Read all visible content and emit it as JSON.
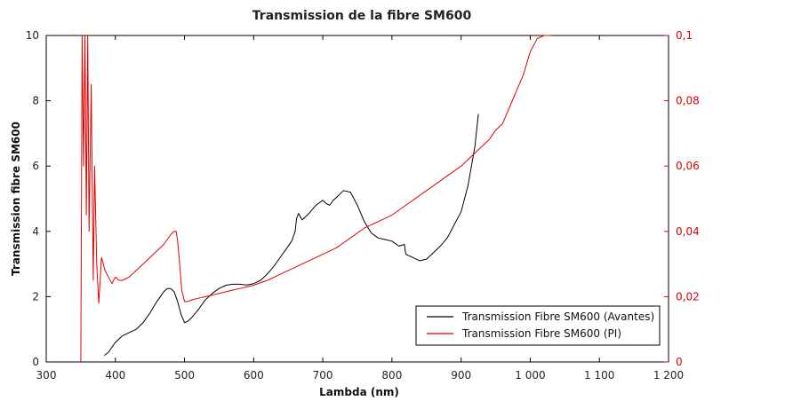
{
  "chart_data": {
    "type": "line",
    "title": "Transmission de la fibre SM600",
    "xlabel": "Lambda (nm)",
    "ylabel": "Transmission fibre SM600",
    "y2label": "",
    "xlim": [
      300,
      1200
    ],
    "ylim": [
      0,
      10
    ],
    "y2lim": [
      0,
      0.1
    ],
    "xticks": [
      300,
      400,
      500,
      600,
      700,
      800,
      900,
      1000,
      1100,
      1200
    ],
    "xtick_labels": [
      "300",
      "400",
      "500",
      "600",
      "700",
      "800",
      "900",
      "1 000",
      "1 100",
      "1 200"
    ],
    "yticks": [
      0,
      2,
      4,
      6,
      8,
      10
    ],
    "ytick_labels": [
      "0",
      "2",
      "4",
      "6",
      "8",
      "10"
    ],
    "y2ticks": [
      0,
      0.02,
      0.04,
      0.06,
      0.08,
      0.1
    ],
    "y2tick_labels": [
      "0",
      "0,02",
      "0,04",
      "0,06",
      "0,08",
      "0,1"
    ],
    "grid": false,
    "legend_position": "bottom-right",
    "series": [
      {
        "name": "Transmission Fibre SM600 (Avantes)",
        "color": "#000000",
        "axis": "left",
        "x": [
          384,
          390,
          400,
          410,
          420,
          430,
          440,
          450,
          460,
          470,
          475,
          480,
          485,
          490,
          495,
          500,
          505,
          510,
          520,
          530,
          540,
          550,
          560,
          570,
          580,
          590,
          600,
          610,
          620,
          630,
          640,
          650,
          655,
          660,
          662,
          665,
          670,
          680,
          690,
          700,
          705,
          710,
          715,
          720,
          730,
          740,
          750,
          760,
          770,
          780,
          790,
          800,
          810,
          818,
          820,
          830,
          840,
          850,
          860,
          870,
          880,
          890,
          900,
          910,
          920,
          925
        ],
        "y": [
          0.2,
          0.3,
          0.6,
          0.8,
          0.9,
          1.0,
          1.2,
          1.5,
          1.85,
          2.15,
          2.25,
          2.25,
          2.15,
          1.85,
          1.45,
          1.2,
          1.25,
          1.35,
          1.6,
          1.9,
          2.1,
          2.25,
          2.35,
          2.38,
          2.38,
          2.36,
          2.4,
          2.5,
          2.7,
          2.95,
          3.25,
          3.55,
          3.7,
          4.0,
          4.4,
          4.55,
          4.35,
          4.55,
          4.8,
          4.95,
          4.85,
          4.8,
          4.95,
          5.05,
          5.25,
          5.2,
          4.8,
          4.3,
          3.95,
          3.8,
          3.75,
          3.7,
          3.55,
          3.6,
          3.3,
          3.2,
          3.1,
          3.15,
          3.35,
          3.55,
          3.8,
          4.2,
          4.6,
          5.4,
          6.6,
          7.6
        ]
      },
      {
        "name": "Transmission Fibre SM600 (PI)",
        "color": "#e00000",
        "axis": "right",
        "x": [
          350,
          352,
          354,
          356,
          358,
          360,
          362,
          365,
          368,
          370,
          373,
          376,
          380,
          385,
          390,
          395,
          400,
          405,
          410,
          420,
          430,
          440,
          450,
          460,
          470,
          480,
          485,
          488,
          490,
          493,
          496,
          500,
          505,
          510,
          520,
          530,
          540,
          550,
          560,
          570,
          580,
          590,
          600,
          620,
          640,
          660,
          680,
          700,
          720,
          740,
          760,
          780,
          800,
          820,
          840,
          860,
          880,
          900,
          920,
          940,
          950,
          960,
          970,
          980,
          990,
          1000,
          1010,
          1020,
          1030
        ],
        "y": [
          0.0,
          0.1,
          0.06,
          0.1,
          0.045,
          0.1,
          0.04,
          0.085,
          0.025,
          0.06,
          0.03,
          0.018,
          0.032,
          0.028,
          0.026,
          0.024,
          0.026,
          0.025,
          0.025,
          0.026,
          0.028,
          0.03,
          0.032,
          0.034,
          0.036,
          0.039,
          0.04,
          0.04,
          0.037,
          0.03,
          0.022,
          0.0185,
          0.0185,
          0.019,
          0.0195,
          0.02,
          0.0205,
          0.021,
          0.0215,
          0.022,
          0.0225,
          0.023,
          0.0235,
          0.025,
          0.027,
          0.029,
          0.031,
          0.033,
          0.035,
          0.038,
          0.041,
          0.043,
          0.045,
          0.048,
          0.051,
          0.054,
          0.057,
          0.06,
          0.064,
          0.068,
          0.071,
          0.073,
          0.078,
          0.083,
          0.088,
          0.095,
          0.099,
          0.1,
          0.1
        ]
      }
    ]
  }
}
